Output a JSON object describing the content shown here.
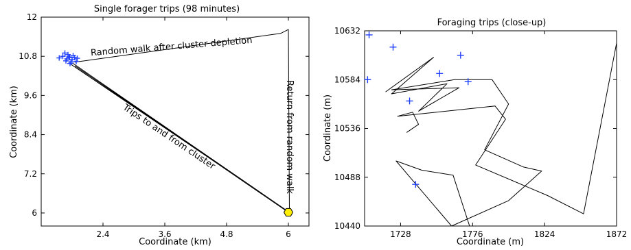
{
  "chart_data": [
    {
      "type": "line",
      "title": "Single forager trips (98 minutes)",
      "xlabel": "Coordinate (km)",
      "ylabel": "Coordinate (km)",
      "xlim": [
        1.2,
        6.4
      ],
      "ylim": [
        5.6,
        12.0
      ],
      "xticks": [
        "2.4",
        "3.6",
        "4.8",
        "6"
      ],
      "yticks": [
        "12",
        "10.8",
        "9.6",
        "8.4",
        "7.2",
        "6"
      ],
      "annotations": [
        "Random walk after cluster depletion",
        "Return from random walk",
        "Trips to and from cluster"
      ],
      "nest": {
        "x": 6.0,
        "y": 6.02,
        "color": "#ffee00"
      },
      "cluster_color": "#1f3fff",
      "track_color": "#000000",
      "cluster_points": [
        [
          1.55,
          10.75
        ],
        [
          1.62,
          10.8
        ],
        [
          1.7,
          10.72
        ],
        [
          1.75,
          10.78
        ],
        [
          1.8,
          10.7
        ],
        [
          1.72,
          10.85
        ],
        [
          1.78,
          10.62
        ],
        [
          1.85,
          10.76
        ],
        [
          1.68,
          10.66
        ],
        [
          1.82,
          10.82
        ],
        [
          1.9,
          10.74
        ],
        [
          1.76,
          10.58
        ],
        [
          1.66,
          10.9
        ],
        [
          1.88,
          10.64
        ],
        [
          1.74,
          10.76
        ]
      ],
      "series": [
        {
          "x": [
            1.85,
            5.85,
            6.0,
            6.02
          ],
          "y": [
            10.62,
            11.5,
            11.62,
            6.02
          ]
        },
        {
          "x": [
            1.78,
            6.02,
            1.82,
            6.0,
            1.86,
            6.02
          ],
          "y": [
            10.55,
            6.02,
            10.58,
            6.02,
            10.5,
            6.02
          ]
        }
      ]
    },
    {
      "type": "line",
      "title": "Foraging trips (close-up)",
      "xlabel": "Coordinate (m)",
      "ylabel": "Coordinate (m)",
      "xlim": [
        1704,
        1872
      ],
      "ylim": [
        10440,
        10632
      ],
      "xticks": [
        "1728",
        "1776",
        "1824",
        "1872"
      ],
      "yticks": [
        "10632",
        "10584",
        "10536",
        "10488",
        "10440"
      ],
      "markers": [
        [
          1707,
          10628
        ],
        [
          1723,
          10616
        ],
        [
          1706,
          10584
        ],
        [
          1734,
          10563
        ],
        [
          1754,
          10590
        ],
        [
          1768,
          10608
        ],
        [
          1773,
          10582
        ],
        [
          1738,
          10481
        ]
      ],
      "series": [
        {
          "x": [
            1718,
            1750,
            1722,
            1759,
            1740,
            1767,
            1722,
            1764,
            1789,
            1800,
            1784,
            1810,
            1822,
            1800,
            1762,
            1725,
            1742,
            1763,
            1774
          ],
          "y": [
            10572,
            10606,
            10570,
            10580,
            10553,
            10576,
            10574,
            10584,
            10584,
            10560,
            10515,
            10498,
            10494,
            10465,
            10440,
            10504,
            10495,
            10490,
            10440
          ]
        },
        {
          "x": [
            1732,
            1740,
            1736,
            1726,
            1791,
            1798,
            1778,
            1826,
            1850,
            1872
          ],
          "y": [
            10532,
            10540,
            10552,
            10548,
            10558,
            10545,
            10500,
            10470,
            10452,
            10620
          ]
        }
      ]
    }
  ]
}
